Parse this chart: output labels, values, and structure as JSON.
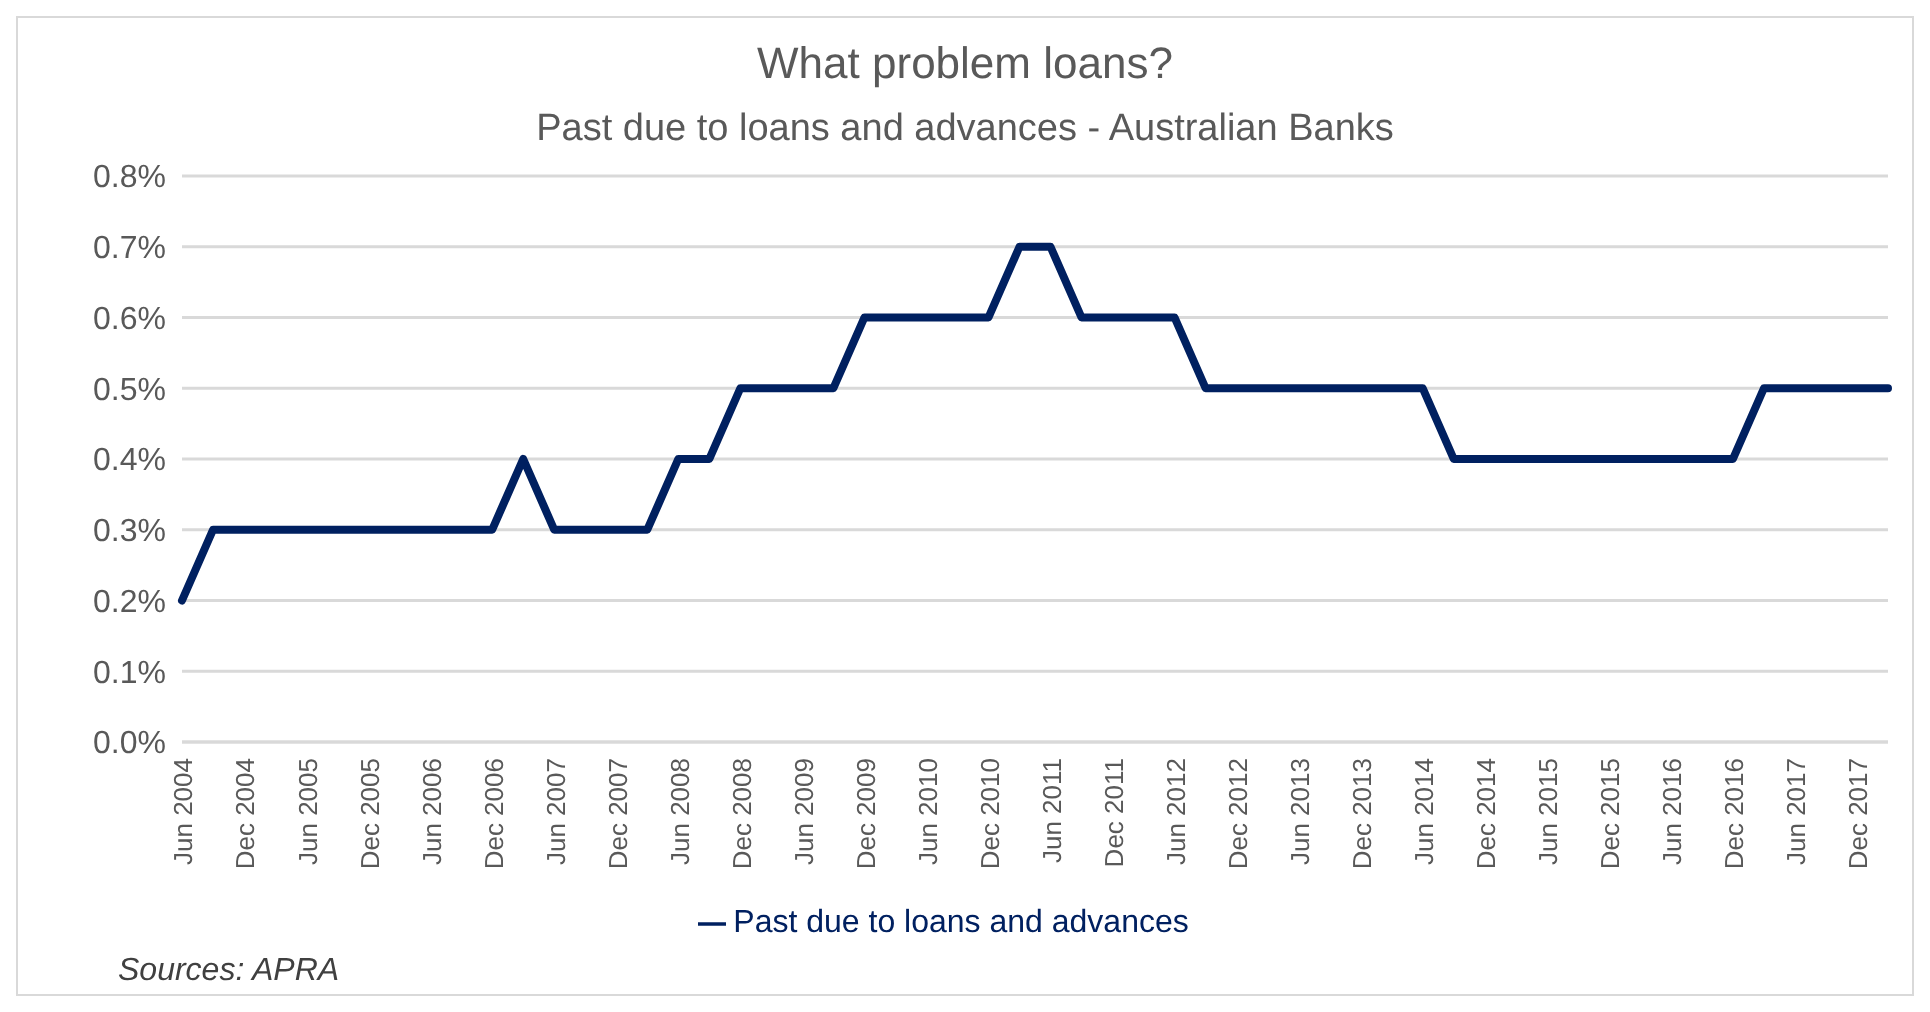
{
  "chart_data": {
    "type": "line",
    "title": "What problem loans?",
    "subtitle": "Past due to loans and advances - Australian Banks",
    "categories": [
      "Jun 2004",
      null,
      "Dec 2004",
      null,
      "Jun 2005",
      null,
      "Dec 2005",
      null,
      "Jun 2006",
      null,
      "Dec 2006",
      null,
      "Jun 2007",
      null,
      "Dec 2007",
      null,
      "Jun 2008",
      null,
      "Dec 2008",
      null,
      "Jun 2009",
      null,
      "Dec 2009",
      null,
      "Jun 2010",
      null,
      "Dec 2010",
      null,
      "Jun 2011",
      null,
      "Dec 2011",
      null,
      "Jun 2012",
      null,
      "Dec 2012",
      null,
      "Jun 2013",
      null,
      "Dec 2013",
      null,
      "Jun 2014",
      null,
      "Dec 2014",
      null,
      "Jun 2015",
      null,
      "Dec 2015",
      null,
      "Jun 2016",
      null,
      "Dec 2016",
      null,
      "Jun 2017",
      null,
      "Dec 2017",
      null
    ],
    "series": [
      {
        "name": "Past due to loans and advances",
        "color": "#002060",
        "values": [
          0.2,
          0.3,
          0.3,
          0.3,
          0.3,
          0.3,
          0.3,
          0.3,
          0.3,
          0.3,
          0.3,
          0.4,
          0.3,
          0.3,
          0.3,
          0.3,
          0.4,
          0.4,
          0.5,
          0.5,
          0.5,
          0.5,
          0.6,
          0.6,
          0.6,
          0.6,
          0.6,
          0.7,
          0.7,
          0.6,
          0.6,
          0.6,
          0.6,
          0.5,
          0.5,
          0.5,
          0.5,
          0.5,
          0.5,
          0.5,
          0.5,
          0.4,
          0.4,
          0.4,
          0.4,
          0.4,
          0.4,
          0.4,
          0.4,
          0.4,
          0.4,
          0.5,
          0.5,
          0.5,
          0.5,
          0.5
        ]
      }
    ],
    "ylim": [
      0,
      0.8
    ],
    "yticks": [
      {
        "value": 0,
        "label": "0.0%"
      },
      {
        "value": 0.1,
        "label": "0.1%"
      },
      {
        "value": 0.2,
        "label": "0.2%"
      },
      {
        "value": 0.3,
        "label": "0.3%"
      },
      {
        "value": 0.4,
        "label": "0.4%"
      },
      {
        "value": 0.5,
        "label": "0.5%"
      },
      {
        "value": 0.6,
        "label": "0.6%"
      },
      {
        "value": 0.7,
        "label": "0.7%"
      },
      {
        "value": 0.8,
        "label": "0.8%"
      }
    ],
    "grid": "y",
    "legend": "bottom",
    "annotations": [
      "Sources: APRA"
    ]
  }
}
